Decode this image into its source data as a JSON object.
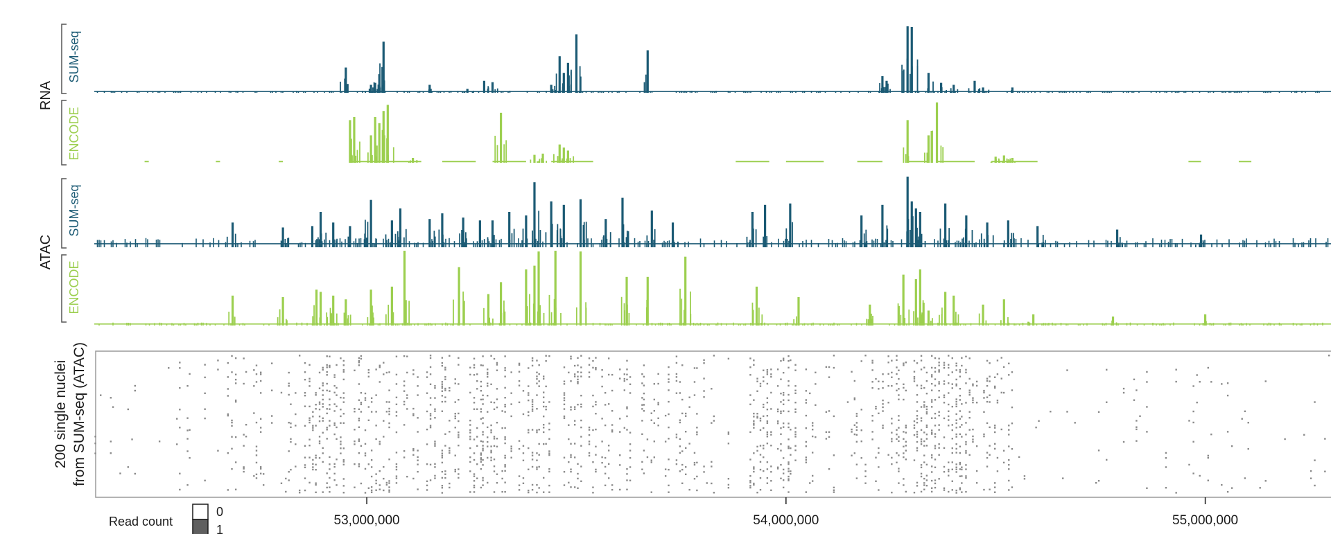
{
  "colors": {
    "sumseq": "#1b5a74",
    "encode": "#9ccf4f",
    "dots": "#8a8a8a",
    "axis": "#1a1a1a",
    "frame": "#9a9a9a",
    "bracket": "#555555"
  },
  "labels": {
    "rna": "RNA",
    "atac": "ATAC",
    "sumseq": "SUM-seq",
    "encode": "ENCODE",
    "nuclei_line1": "200 single nuclei",
    "nuclei_line2": "from SUM-seq (ATAC)"
  },
  "legend": {
    "title": "Read count",
    "items": [
      {
        "label": "0",
        "color": "#ffffff"
      },
      {
        "label": "1",
        "color": "#5f5f5f"
      }
    ]
  },
  "chart_data": [
    {
      "type": "bar",
      "title": "",
      "group": "RNA",
      "series_name": "SUM-seq",
      "xlabel": "",
      "ylabel": "",
      "xlim": [
        52350000,
        55300000
      ],
      "ylim": [
        0,
        1
      ],
      "baseline": 0.02,
      "peaks": [
        [
          52950000,
          0.38
        ],
        [
          53010000,
          0.12
        ],
        [
          53020000,
          0.15
        ],
        [
          53030000,
          0.28
        ],
        [
          53040000,
          0.77
        ],
        [
          53150000,
          0.12
        ],
        [
          53240000,
          0.06
        ],
        [
          53280000,
          0.18
        ],
        [
          53300000,
          0.16
        ],
        [
          53440000,
          0.12
        ],
        [
          53460000,
          0.55
        ],
        [
          53470000,
          0.3
        ],
        [
          53480000,
          0.45
        ],
        [
          53500000,
          0.88
        ],
        [
          53670000,
          0.64
        ],
        [
          54230000,
          0.25
        ],
        [
          54240000,
          0.18
        ],
        [
          54290000,
          1.0
        ],
        [
          54300000,
          0.99
        ],
        [
          54340000,
          0.3
        ],
        [
          54370000,
          0.15
        ],
        [
          54400000,
          0.12
        ],
        [
          54450000,
          0.18
        ],
        [
          54470000,
          0.08
        ],
        [
          54540000,
          0.08
        ]
      ]
    },
    {
      "type": "bar",
      "title": "",
      "group": "RNA",
      "series_name": "ENCODE",
      "xlabel": "",
      "ylabel": "",
      "xlim": [
        52350000,
        55300000
      ],
      "ylim": [
        0,
        1
      ],
      "baseline": 0.02,
      "segments": [
        [
          52470000,
          52480000
        ],
        [
          52640000,
          52650000
        ],
        [
          52790000,
          52800000
        ],
        [
          52960000,
          53130000
        ],
        [
          53180000,
          53260000
        ],
        [
          53300000,
          53380000
        ],
        [
          53440000,
          53540000
        ],
        [
          53880000,
          53960000
        ],
        [
          54000000,
          54090000
        ],
        [
          54170000,
          54230000
        ],
        [
          54290000,
          54340000
        ],
        [
          54360000,
          54450000
        ],
        [
          54490000,
          54600000
        ],
        [
          54960000,
          54990000
        ],
        [
          55080000,
          55110000
        ]
      ],
      "peaks": [
        [
          52960000,
          0.7
        ],
        [
          52970000,
          0.75
        ],
        [
          53010000,
          0.45
        ],
        [
          53020000,
          0.75
        ],
        [
          53030000,
          0.65
        ],
        [
          53040000,
          0.85
        ],
        [
          53050000,
          0.95
        ],
        [
          53110000,
          0.08
        ],
        [
          53320000,
          0.82
        ],
        [
          53400000,
          0.13
        ],
        [
          53420000,
          0.15
        ],
        [
          53460000,
          0.3
        ],
        [
          53470000,
          0.25
        ],
        [
          53480000,
          0.2
        ],
        [
          54290000,
          0.7
        ],
        [
          54340000,
          0.45
        ],
        [
          54360000,
          0.99
        ],
        [
          54500000,
          0.1
        ],
        [
          54520000,
          0.12
        ],
        [
          54540000,
          0.08
        ]
      ]
    },
    {
      "type": "bar",
      "title": "",
      "group": "ATAC",
      "series_name": "SUM-seq",
      "xlabel": "",
      "ylabel": "",
      "xlim": [
        52350000,
        55300000
      ],
      "ylim": [
        0,
        1
      ],
      "baseline": 0.05,
      "peaks": [
        [
          52680000,
          0.35
        ],
        [
          52800000,
          0.28
        ],
        [
          52870000,
          0.3
        ],
        [
          52890000,
          0.5
        ],
        [
          52920000,
          0.35
        ],
        [
          52960000,
          0.3
        ],
        [
          53010000,
          0.67
        ],
        [
          53060000,
          0.38
        ],
        [
          53080000,
          0.55
        ],
        [
          53150000,
          0.4
        ],
        [
          53180000,
          0.48
        ],
        [
          53230000,
          0.42
        ],
        [
          53270000,
          0.38
        ],
        [
          53300000,
          0.38
        ],
        [
          53340000,
          0.5
        ],
        [
          53380000,
          0.45
        ],
        [
          53400000,
          0.92
        ],
        [
          53440000,
          0.65
        ],
        [
          53470000,
          0.6
        ],
        [
          53510000,
          0.68
        ],
        [
          53570000,
          0.4
        ],
        [
          53610000,
          0.7
        ],
        [
          53680000,
          0.52
        ],
        [
          53730000,
          0.35
        ],
        [
          53920000,
          0.5
        ],
        [
          53950000,
          0.6
        ],
        [
          54010000,
          0.62
        ],
        [
          54180000,
          0.45
        ],
        [
          54230000,
          0.6
        ],
        [
          54290000,
          1.0
        ],
        [
          54300000,
          0.65
        ],
        [
          54310000,
          0.55
        ],
        [
          54320000,
          0.5
        ],
        [
          54380000,
          0.62
        ],
        [
          54430000,
          0.45
        ],
        [
          54480000,
          0.35
        ],
        [
          54530000,
          0.38
        ],
        [
          54600000,
          0.3
        ],
        [
          54790000,
          0.25
        ],
        [
          54990000,
          0.18
        ]
      ]
    },
    {
      "type": "bar",
      "title": "",
      "group": "ATAC",
      "series_name": "ENCODE",
      "xlabel": "",
      "ylabel": "",
      "xlim": [
        52350000,
        55300000
      ],
      "ylim": [
        0,
        1
      ],
      "baseline": 0.02,
      "peaks": [
        [
          52680000,
          0.4
        ],
        [
          52800000,
          0.38
        ],
        [
          52880000,
          0.48
        ],
        [
          52890000,
          0.45
        ],
        [
          52920000,
          0.4
        ],
        [
          52950000,
          0.35
        ],
        [
          53010000,
          0.48
        ],
        [
          53060000,
          0.52
        ],
        [
          53090000,
          1.0
        ],
        [
          53220000,
          0.78
        ],
        [
          53290000,
          0.42
        ],
        [
          53320000,
          0.58
        ],
        [
          53380000,
          0.75
        ],
        [
          53400000,
          0.8
        ],
        [
          53410000,
          0.99
        ],
        [
          53450000,
          1.0
        ],
        [
          53510000,
          0.99
        ],
        [
          53620000,
          0.65
        ],
        [
          53670000,
          0.65
        ],
        [
          53760000,
          0.92
        ],
        [
          53930000,
          0.52
        ],
        [
          54030000,
          0.38
        ],
        [
          54200000,
          0.28
        ],
        [
          54280000,
          0.68
        ],
        [
          54310000,
          0.62
        ],
        [
          54320000,
          0.75
        ],
        [
          54340000,
          0.2
        ],
        [
          54380000,
          0.45
        ],
        [
          54400000,
          0.4
        ],
        [
          54470000,
          0.28
        ],
        [
          54520000,
          0.35
        ],
        [
          54590000,
          0.15
        ],
        [
          54780000,
          0.12
        ],
        [
          55000000,
          0.15
        ]
      ]
    },
    {
      "type": "scatter",
      "title": "",
      "series_name": "200 single nuclei from SUM-seq (ATAC)",
      "xlabel": "",
      "ylabel": "200 single nuclei from SUM-seq (ATAC)",
      "xlim": [
        52350000,
        55300000
      ],
      "ylim": [
        0,
        200
      ],
      "x_ticks": [
        53000000,
        54000000,
        55000000
      ],
      "x_tick_labels": [
        "53,000,000",
        "54,000,000",
        "55,000,000"
      ],
      "description": "each point = read count 1 for a nucleus (row) at a genomic position",
      "density_regions": [
        [
          52350000,
          52550000,
          0.05
        ],
        [
          52550000,
          52750000,
          0.25
        ],
        [
          52750000,
          52850000,
          0.15
        ],
        [
          52850000,
          53000000,
          0.55
        ],
        [
          53000000,
          53150000,
          0.5
        ],
        [
          53150000,
          53400000,
          0.55
        ],
        [
          53400000,
          53550000,
          0.5
        ],
        [
          53550000,
          53800000,
          0.35
        ],
        [
          53800000,
          53900000,
          0.12
        ],
        [
          53900000,
          54050000,
          0.55
        ],
        [
          54050000,
          54150000,
          0.2
        ],
        [
          54150000,
          54250000,
          0.35
        ],
        [
          54250000,
          54450000,
          0.65
        ],
        [
          54450000,
          54550000,
          0.3
        ],
        [
          54550000,
          54800000,
          0.06
        ],
        [
          54800000,
          55050000,
          0.08
        ],
        [
          55050000,
          55300000,
          0.05
        ]
      ]
    }
  ]
}
